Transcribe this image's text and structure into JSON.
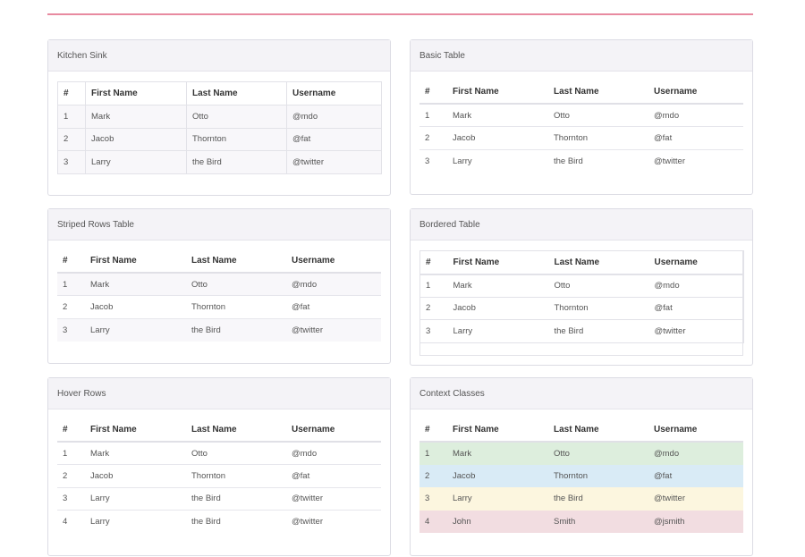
{
  "panels": {
    "kitchen_sink": {
      "title": "Kitchen Sink"
    },
    "basic": {
      "title": "Basic Table"
    },
    "striped": {
      "title": "Striped Rows Table"
    },
    "bordered": {
      "title": "Bordered Table"
    },
    "hover": {
      "title": "Hover Rows"
    },
    "context": {
      "title": "Context Classes"
    }
  },
  "headers": [
    "#",
    "First Name",
    "Last Name",
    "Username"
  ],
  "rows": [
    [
      "1",
      "Mark",
      "Otto",
      "@mdo"
    ],
    [
      "2",
      "Jacob",
      "Thornton",
      "@fat"
    ],
    [
      "3",
      "Larry",
      "the Bird",
      "@twitter"
    ]
  ],
  "hover_rows": [
    [
      "1",
      "Mark",
      "Otto",
      "@mdo"
    ],
    [
      "2",
      "Jacob",
      "Thornton",
      "@fat"
    ],
    [
      "3",
      "Larry",
      "the Bird",
      "@twitter"
    ],
    [
      "4",
      "Larry",
      "the Bird",
      "@twitter"
    ]
  ],
  "context_rows": [
    [
      "1",
      "Mark",
      "Otto",
      "@mdo"
    ],
    [
      "2",
      "Jacob",
      "Thornton",
      "@fat"
    ],
    [
      "3",
      "Larry",
      "the Bird",
      "@twitter"
    ],
    [
      "4",
      "John",
      "Smith",
      "@jsmith"
    ]
  ],
  "colors": {
    "accent_line": "#e88aa0",
    "success": "#ddeedd",
    "info": "#d9ebf6",
    "warning": "#fcf6df",
    "danger": "#f2dde1"
  }
}
